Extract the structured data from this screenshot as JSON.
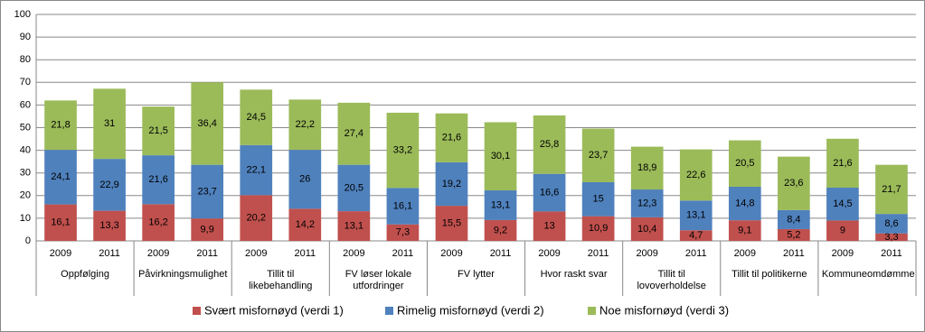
{
  "chart_data": {
    "type": "stacked-bar",
    "categories": [
      "2009",
      "2011",
      "2009",
      "2011",
      "2009",
      "2011",
      "2009",
      "2011",
      "2009",
      "2011",
      "2009",
      "2011",
      "2009",
      "2011",
      "2009",
      "2011",
      "2009",
      "2011"
    ],
    "groups": [
      "Oppfølging",
      "Påvirkningsmulighet",
      "Tillit til likebehandling",
      "FV løser lokale utfordringer",
      "FV lytter",
      "Hvor raskt svar",
      "Tillit til lovoverholdelse",
      "Tillit til politikerne",
      "Kommuneomdømme"
    ],
    "series": [
      {
        "name": "Svært misfornøyd (verdi 1)",
        "color": "#c0504d",
        "values": [
          16.1,
          13.3,
          16.2,
          9.9,
          20.2,
          14.2,
          13.1,
          7.3,
          15.5,
          9.2,
          13,
          10.9,
          10.4,
          4.7,
          9.1,
          5.2,
          9,
          3.3
        ],
        "value_labels": [
          "16,1",
          "13,3",
          "16,2",
          "9,9",
          "20,2",
          "14,2",
          "13,1",
          "7,3",
          "15,5",
          "9,2",
          "13",
          "10,9",
          "10,4",
          "4,7",
          "9,1",
          "5,2",
          "9",
          "3,3"
        ]
      },
      {
        "name": "Rimelig misfornøyd (verdi 2)",
        "color": "#4f81bd",
        "values": [
          24.1,
          22.9,
          21.6,
          23.7,
          22.1,
          26,
          20.5,
          16.1,
          19.2,
          13.1,
          16.6,
          15,
          12.3,
          13.1,
          14.8,
          8.4,
          14.5,
          8.6
        ],
        "value_labels": [
          "24,1",
          "22,9",
          "21,6",
          "23,7",
          "22,1",
          "26",
          "20,5",
          "16,1",
          "19,2",
          "13,1",
          "16,6",
          "15",
          "12,3",
          "13,1",
          "14,8",
          "8,4",
          "14,5",
          "8,6"
        ]
      },
      {
        "name": "Noe misfornøyd (verdi 3)",
        "color": "#9bbb59",
        "values": [
          21.8,
          31,
          21.5,
          36.4,
          24.5,
          22.2,
          27.4,
          33.2,
          21.6,
          30.1,
          25.8,
          23.7,
          18.9,
          22.6,
          20.5,
          23.6,
          21.6,
          21.7
        ],
        "value_labels": [
          "21,8",
          "31",
          "21,5",
          "36,4",
          "24,5",
          "22,2",
          "27,4",
          "33,2",
          "21,6",
          "30,1",
          "25,8",
          "23,7",
          "18,9",
          "22,6",
          "20,5",
          "23,6",
          "21,6",
          "21,7"
        ]
      }
    ],
    "ylim": [
      0,
      100
    ],
    "yticks": [
      0,
      10,
      20,
      30,
      40,
      50,
      60,
      70,
      80,
      90,
      100
    ],
    "grid": true
  }
}
